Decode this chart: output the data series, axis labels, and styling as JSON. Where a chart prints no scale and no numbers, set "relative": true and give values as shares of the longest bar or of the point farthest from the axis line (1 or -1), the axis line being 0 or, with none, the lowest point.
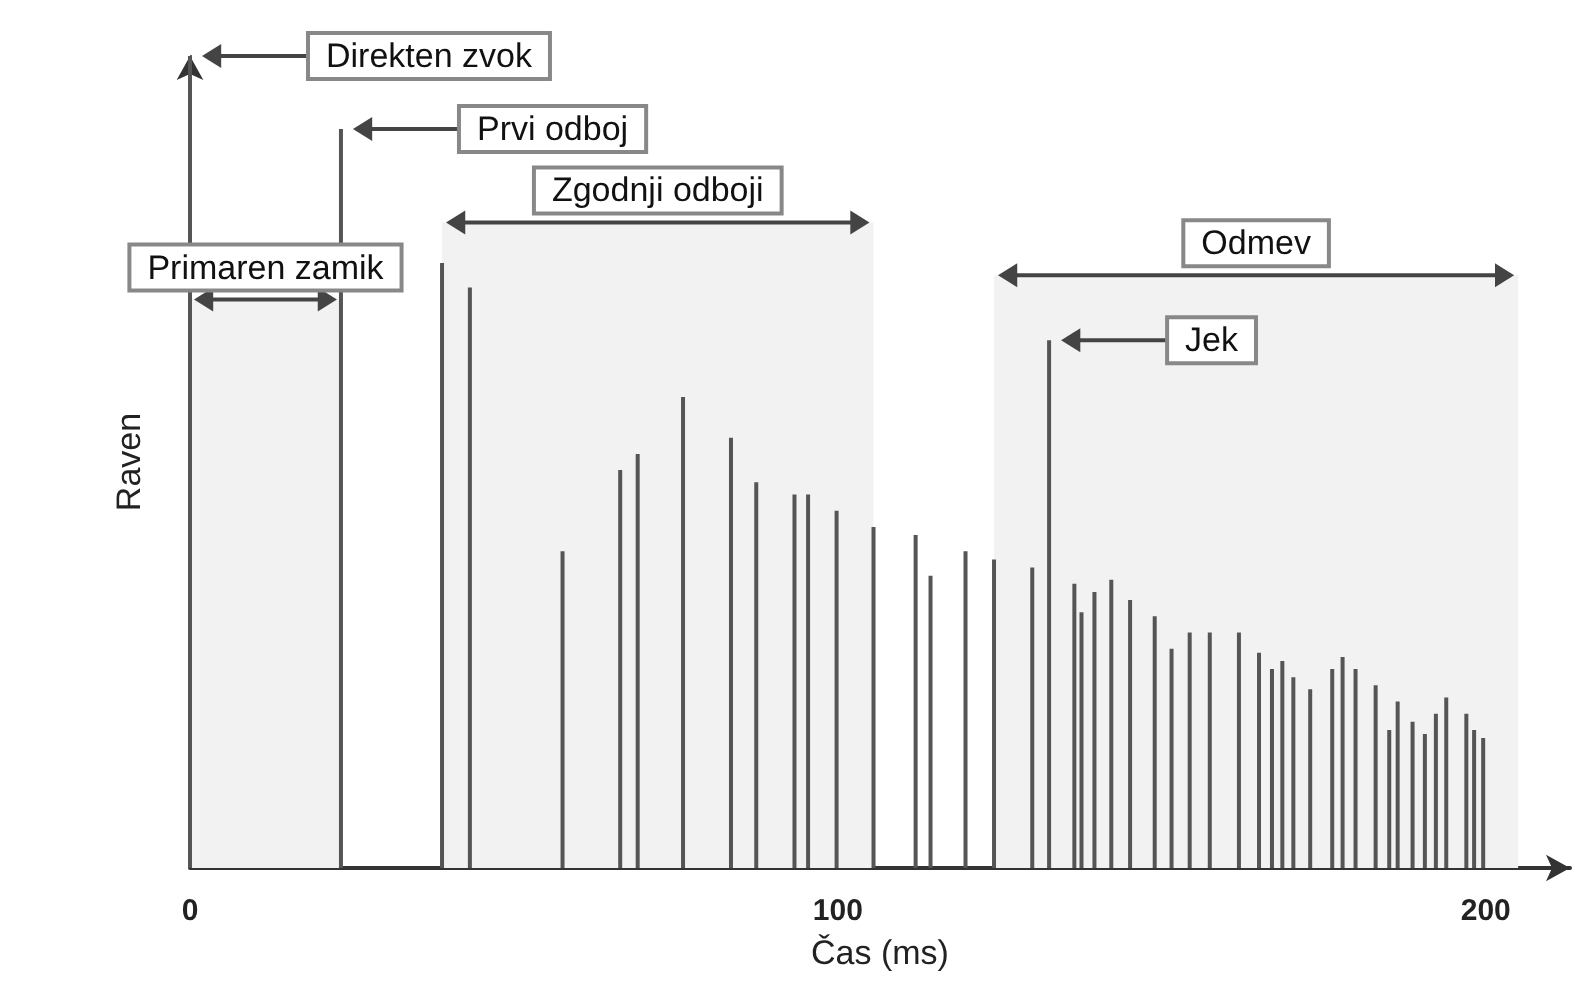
{
  "chart_data": {
    "type": "bar",
    "relative": true,
    "xlabel": "Čas (ms)",
    "ylabel": "Raven",
    "color": "#555555",
    "x": [
      0,
      23.3,
      38.9,
      43.2,
      57.5,
      66.4,
      69.1,
      76.1,
      83.5,
      87.4,
      93.3,
      95.4,
      99.8,
      105.5,
      112.0,
      114.3,
      119.7,
      124.1,
      130.0,
      132.6,
      136.5,
      137.6,
      139.6,
      142.2,
      145.1,
      148.9,
      151.5,
      154.3,
      157.4,
      161.9,
      165.0,
      167.0,
      168.6,
      170.3,
      172.9,
      176.3,
      177.9,
      179.9,
      183.0,
      185.1,
      186.4,
      188.7,
      190.6,
      192.3,
      193.9,
      197.0,
      198.2,
      199.6
    ],
    "values": [
      1,
      0.91,
      0.745,
      0.715,
      0.39,
      0.49,
      0.51,
      0.58,
      0.53,
      0.475,
      0.46,
      0.46,
      0.44,
      0.42,
      0.41,
      0.36,
      0.39,
      0.38,
      0.37,
      0.65,
      0.35,
      0.315,
      0.34,
      0.355,
      0.33,
      0.31,
      0.27,
      0.29,
      0.29,
      0.29,
      0.265,
      0.245,
      0.255,
      0.235,
      0.22,
      0.245,
      0.26,
      0.245,
      0.225,
      0.17,
      0.205,
      0.18,
      0.165,
      0.19,
      0.21,
      0.19,
      0.17,
      0.16
    ],
    "xlim": [
      0,
      213
    ],
    "xticks": [
      0,
      100,
      200
    ],
    "annotations": [
      {
        "text": "Direkten zvok",
        "x": 0,
        "y": 1
      },
      {
        "text": "Prvi odboj",
        "x": 23.3,
        "y": 0.91
      },
      {
        "text": "Jek",
        "x": 132.6,
        "y": 0.65
      }
    ],
    "bands": [
      {
        "axis": "x",
        "from": 0,
        "to": 23.3,
        "label": "Primaren zamik",
        "color": "#f2f2f2"
      },
      {
        "axis": "x",
        "from": 38.9,
        "to": 105.5,
        "label": "Zgodnji odboji",
        "color": "#f2f2f2"
      },
      {
        "axis": "x",
        "from": 124.1,
        "to": 205,
        "label": "Odmev",
        "color": "#f2f2f2"
      }
    ]
  }
}
